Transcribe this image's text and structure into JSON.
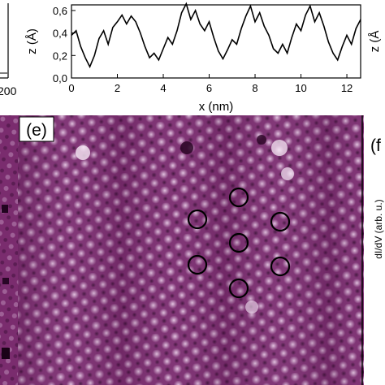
{
  "left_partial": {
    "tick_label": "200"
  },
  "profile": {
    "ylabel": "z (Å)",
    "xlabel": "x (nm)",
    "right_edge_label": "z (Å"
  },
  "chart_data": {
    "type": "line",
    "xlabel": "x (nm)",
    "ylabel": "z (Å)",
    "xlim": [
      0,
      12.6
    ],
    "ylim": [
      0,
      0.65
    ],
    "x_ticks": [
      "0",
      "2",
      "4",
      "6",
      "8",
      "10",
      "12"
    ],
    "y_ticks": [
      "0,0",
      "0,2",
      "0,4",
      "0,6"
    ],
    "grid": false,
    "series": [
      {
        "x": [
          0,
          0.2,
          0.4,
          0.6,
          0.8,
          1.0,
          1.2,
          1.4,
          1.6,
          1.8,
          2.0,
          2.2,
          2.4,
          2.6,
          2.8,
          3.0,
          3.2,
          3.4,
          3.6,
          3.8,
          4.0,
          4.2,
          4.4,
          4.6,
          4.8,
          5.0,
          5.2,
          5.4,
          5.6,
          5.8,
          6.0,
          6.2,
          6.4,
          6.6,
          6.8,
          7.0,
          7.2,
          7.4,
          7.6,
          7.8,
          8.0,
          8.2,
          8.4,
          8.6,
          8.8,
          9.0,
          9.2,
          9.4,
          9.6,
          9.8,
          10.0,
          10.2,
          10.4,
          10.6,
          10.8,
          11.0,
          11.2,
          11.4,
          11.6,
          11.8,
          12.0,
          12.2,
          12.4,
          12.6
        ],
        "values": [
          0.38,
          0.42,
          0.28,
          0.18,
          0.1,
          0.2,
          0.35,
          0.42,
          0.3,
          0.45,
          0.5,
          0.56,
          0.48,
          0.55,
          0.5,
          0.4,
          0.28,
          0.18,
          0.22,
          0.16,
          0.26,
          0.36,
          0.3,
          0.42,
          0.58,
          0.66,
          0.52,
          0.6,
          0.48,
          0.42,
          0.5,
          0.36,
          0.24,
          0.17,
          0.25,
          0.34,
          0.3,
          0.44,
          0.55,
          0.64,
          0.5,
          0.58,
          0.46,
          0.38,
          0.26,
          0.22,
          0.3,
          0.22,
          0.36,
          0.48,
          0.42,
          0.56,
          0.64,
          0.5,
          0.58,
          0.46,
          0.32,
          0.22,
          0.16,
          0.28,
          0.38,
          0.3,
          0.44,
          0.52
        ]
      }
    ]
  },
  "panels": {
    "e_label": "(e)",
    "f_label": "(f",
    "f_ylabel": "dI/dV (arb. u.)"
  },
  "stm": {
    "background": "#7a2c6e",
    "spot_colors": [
      "#e6c8e6",
      "#33082f"
    ],
    "marked_circles": 7
  }
}
